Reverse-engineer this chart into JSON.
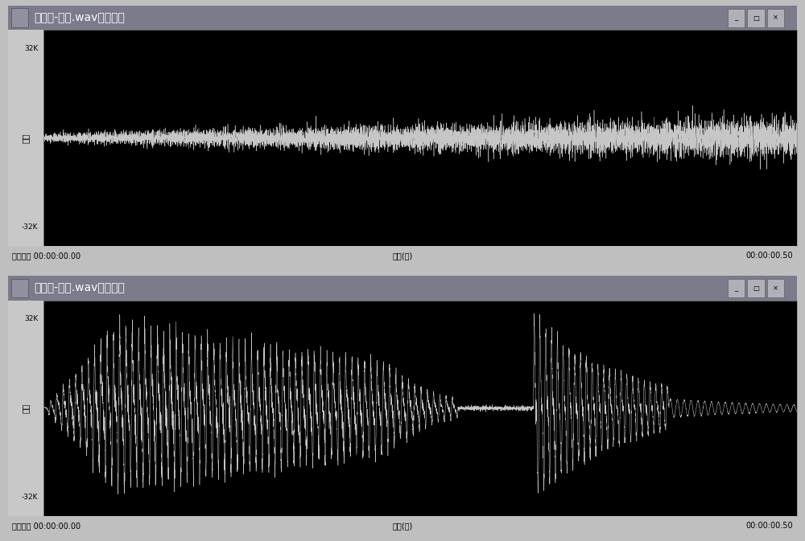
{
  "title1": "英文音-音段.wav时域波形",
  "title2": "弹拨乐-音段.wav时域波形",
  "ylabel": "幅度",
  "xlabel_center": "时间(秒)",
  "xlabel_left": "时间范围 00:00:00.00",
  "xlabel_right": "00:00:00.50",
  "bg_color": "#000000",
  "title_bar_color": "#7b7b8b",
  "wave_color": "#d8d8d8",
  "outer_bg": "#c0bfc0",
  "window_bg": "#c8c8c8",
  "status_bg": "#c0bfc0",
  "border_color": "#a0a0a0",
  "ylim": [
    -32000,
    32000
  ],
  "n_samples": 8000,
  "seed1": 42,
  "seed2": 77
}
